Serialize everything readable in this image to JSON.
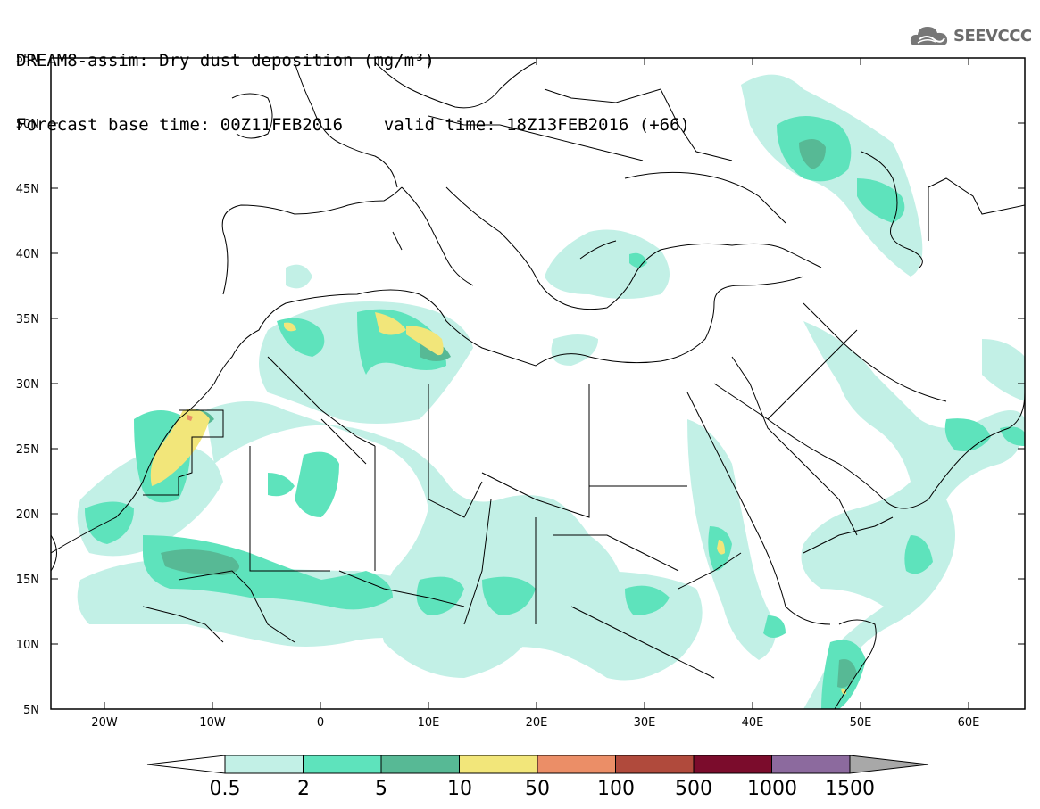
{
  "title": {
    "line1": "DREAM8-assim: Dry dust deposition (mg/m³)",
    "line2_left": "Forecast base time: 00Z11FEB2016",
    "line2_right": "valid time: 18Z13FEB2016 (+66)"
  },
  "logo": {
    "text": "SEEVCCC",
    "icon": "cloud-icon"
  },
  "map": {
    "lat_labels": [
      "55N",
      "50N",
      "45N",
      "40N",
      "35N",
      "30N",
      "25N",
      "20N",
      "15N",
      "10N",
      "5N"
    ],
    "lon_labels": [
      "20W",
      "10W",
      "0",
      "10E",
      "20E",
      "30E",
      "40E",
      "50E",
      "60E"
    ]
  },
  "colorbar": {
    "labels": [
      "0.5",
      "2",
      "5",
      "10",
      "50",
      "100",
      "500",
      "1000",
      "1500"
    ],
    "colors": [
      "#c2f0e6",
      "#5ee3bc",
      "#57b995",
      "#f2e67a",
      "#eb8e67",
      "#b04a3c",
      "#7b0c2c",
      "#8c6a9e"
    ],
    "low_color": "#ffffff",
    "high_color": "#a8a8a8"
  }
}
